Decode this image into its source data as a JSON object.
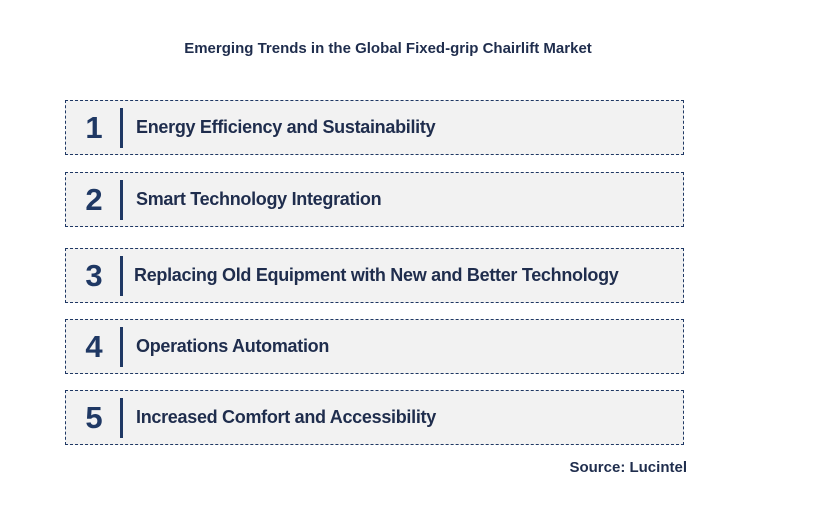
{
  "title": "Emerging Trends in the Global Fixed-grip Chairlift Market",
  "trends": [
    {
      "number": "1",
      "label": "Energy Efficiency and Sustainability"
    },
    {
      "number": "2",
      "label": "Smart Technology Integration"
    },
    {
      "number": "3",
      "label": "Replacing Old Equipment with New and Better Technology"
    },
    {
      "number": "4",
      "label": "Operations Automation"
    },
    {
      "number": "5",
      "label": "Increased Comfort and Accessibility"
    }
  ],
  "source": "Source: Lucintel",
  "colors": {
    "accent": "#1f3864",
    "text": "#1f2d4d",
    "box_fill": "#f2f2f2"
  }
}
